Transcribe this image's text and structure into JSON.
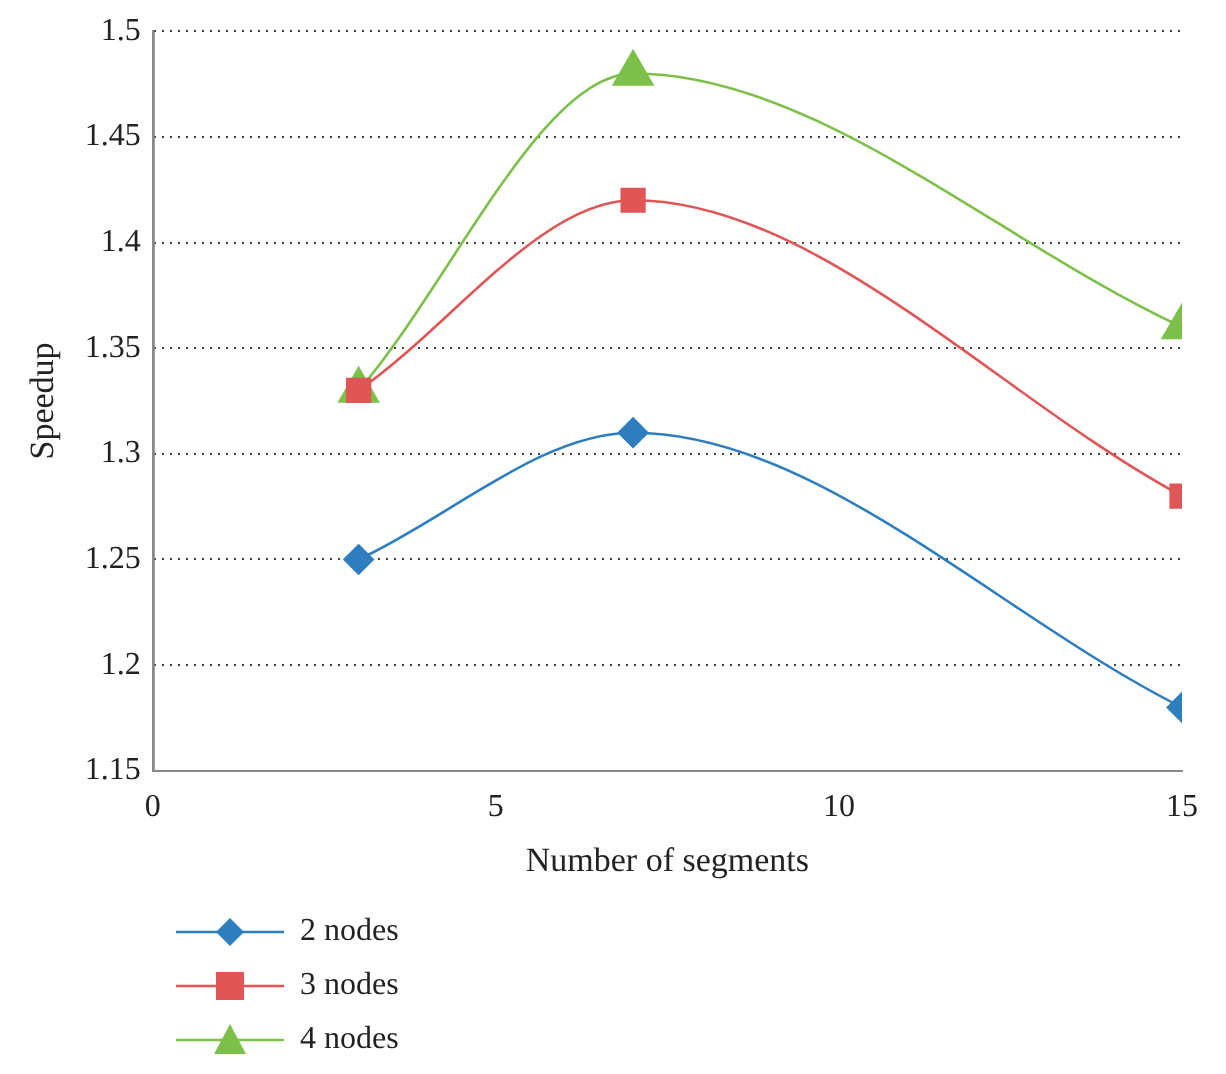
{
  "chart_data": {
    "type": "line",
    "xlabel": "Number of segments",
    "ylabel": "Speedup",
    "x": [
      3,
      7,
      15
    ],
    "series": [
      {
        "name": "2 nodes",
        "color": "#2e7ebf",
        "marker": "diamond",
        "values": [
          1.25,
          1.31,
          1.18
        ]
      },
      {
        "name": "3 nodes",
        "color": "#e05656",
        "marker": "square",
        "values": [
          1.33,
          1.42,
          1.28
        ]
      },
      {
        "name": "4 nodes",
        "color": "#7cc04a",
        "marker": "triangle",
        "values": [
          1.33,
          1.48,
          1.36
        ]
      }
    ],
    "xlim": [
      0,
      15
    ],
    "xticks": [
      0,
      5,
      10,
      15
    ],
    "ylim": [
      1.15,
      1.5
    ],
    "yticks": [
      1.15,
      1.2,
      1.25,
      1.3,
      1.35,
      1.4,
      1.45,
      1.5
    ],
    "grid": "y",
    "legend": "bottom left",
    "line_style": "solid"
  }
}
